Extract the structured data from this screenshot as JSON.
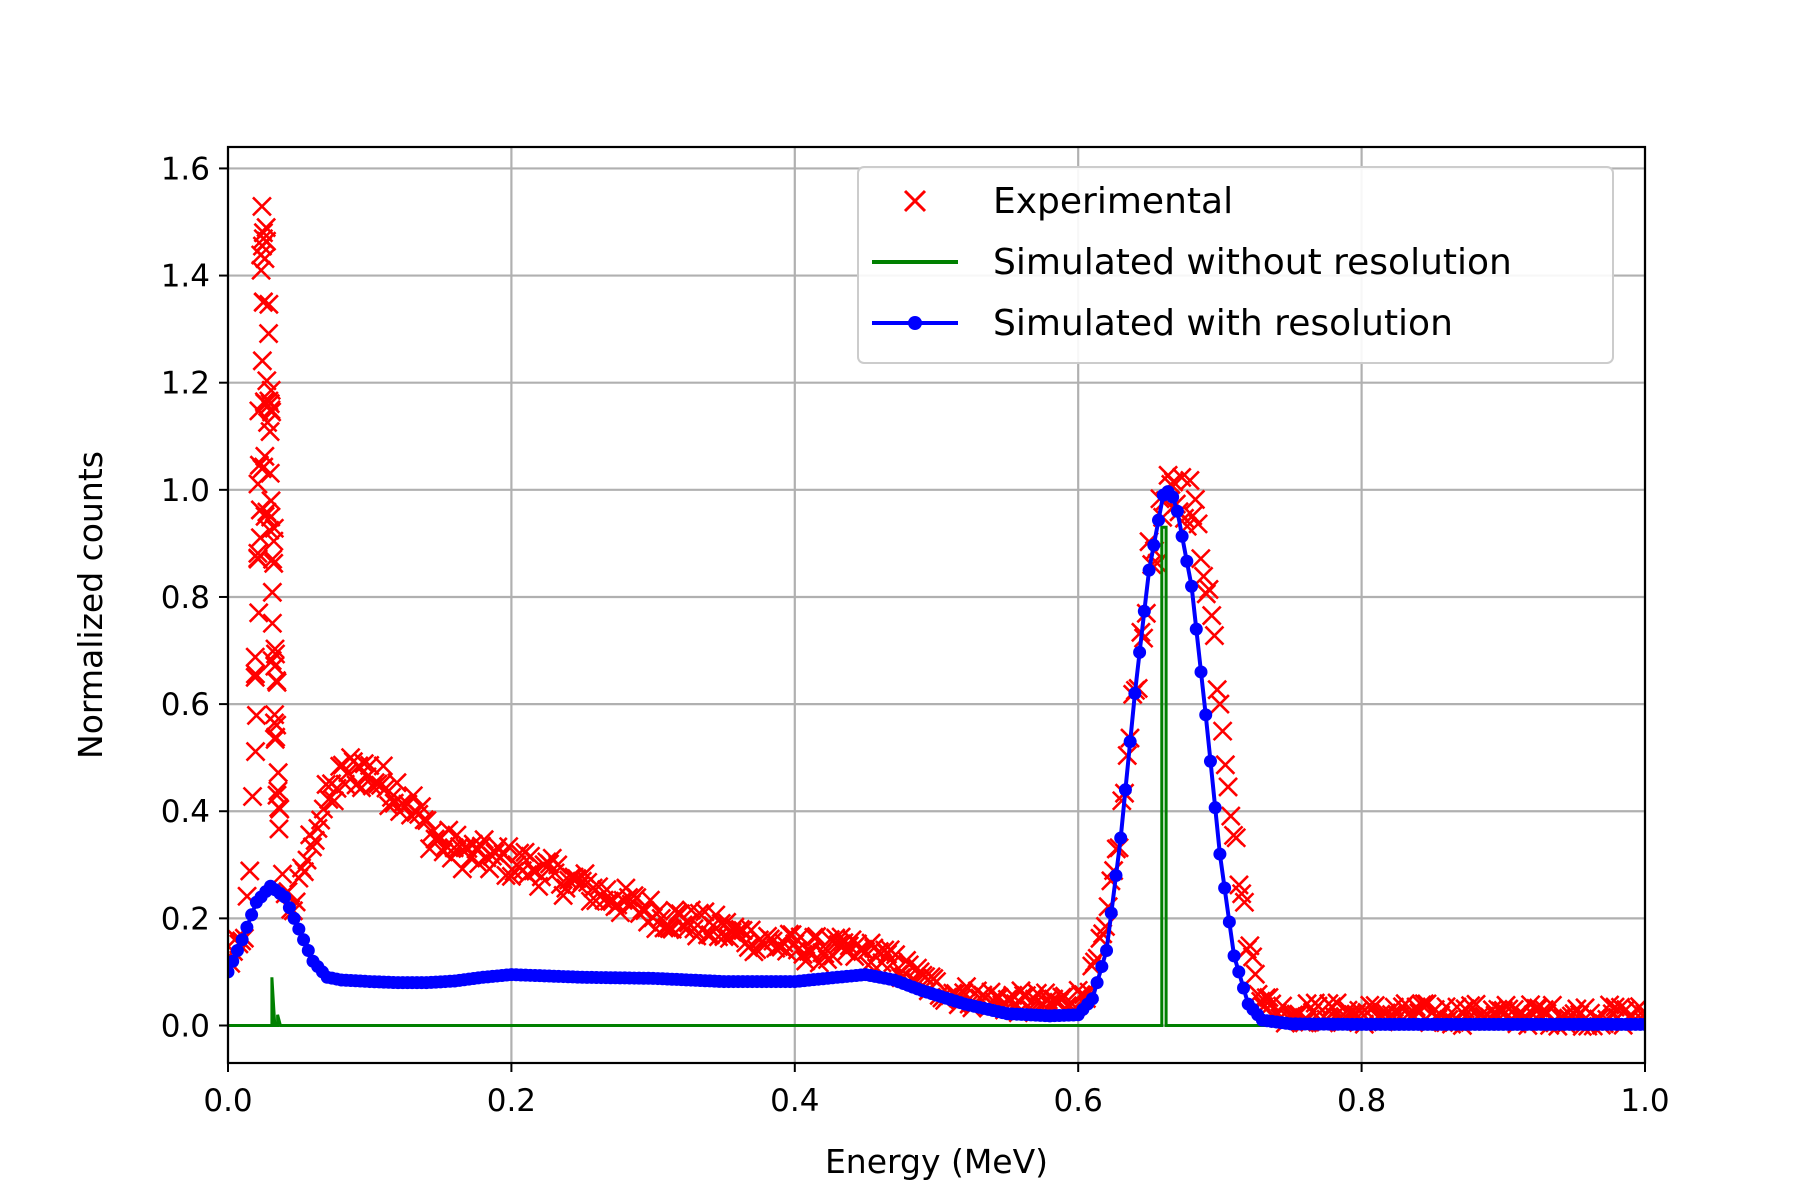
{
  "chart_data": {
    "type": "line",
    "xlabel": "Energy (MeV)",
    "ylabel": "Normalized counts",
    "xlim": [
      0.0,
      1.0
    ],
    "ylim": [
      -0.07,
      1.64
    ],
    "xticks": [
      "0.0",
      "0.2",
      "0.4",
      "0.6",
      "0.8",
      "1.0"
    ],
    "yticks": [
      "0.0",
      "0.2",
      "0.4",
      "0.6",
      "0.8",
      "1.0",
      "1.2",
      "1.4",
      "1.6"
    ],
    "grid": true,
    "legend": {
      "position": "upper-right"
    },
    "series": [
      {
        "name": "Experimental",
        "color": "#ff0000",
        "marker": "x",
        "points": [
          [
            0.0,
            0.12
          ],
          [
            0.01,
            0.15
          ],
          [
            0.015,
            0.25
          ],
          [
            0.018,
            0.45
          ],
          [
            0.02,
            0.8
          ],
          [
            0.022,
            1.2
          ],
          [
            0.024,
            1.56
          ],
          [
            0.026,
            1.5
          ],
          [
            0.028,
            1.45
          ],
          [
            0.03,
            1.3
          ],
          [
            0.032,
            1.0
          ],
          [
            0.034,
            0.7
          ],
          [
            0.036,
            0.4
          ],
          [
            0.04,
            0.25
          ],
          [
            0.045,
            0.22
          ],
          [
            0.05,
            0.25
          ],
          [
            0.06,
            0.36
          ],
          [
            0.07,
            0.42
          ],
          [
            0.08,
            0.46
          ],
          [
            0.09,
            0.48
          ],
          [
            0.1,
            0.47
          ],
          [
            0.11,
            0.45
          ],
          [
            0.12,
            0.44
          ],
          [
            0.13,
            0.41
          ],
          [
            0.14,
            0.37
          ],
          [
            0.15,
            0.34
          ],
          [
            0.17,
            0.32
          ],
          [
            0.19,
            0.31
          ],
          [
            0.21,
            0.3
          ],
          [
            0.23,
            0.28
          ],
          [
            0.25,
            0.26
          ],
          [
            0.27,
            0.24
          ],
          [
            0.3,
            0.21
          ],
          [
            0.33,
            0.19
          ],
          [
            0.36,
            0.17
          ],
          [
            0.39,
            0.15
          ],
          [
            0.42,
            0.14
          ],
          [
            0.44,
            0.14
          ],
          [
            0.46,
            0.13
          ],
          [
            0.48,
            0.1
          ],
          [
            0.5,
            0.07
          ],
          [
            0.52,
            0.055
          ],
          [
            0.55,
            0.045
          ],
          [
            0.58,
            0.04
          ],
          [
            0.6,
            0.05
          ],
          [
            0.61,
            0.09
          ],
          [
            0.62,
            0.18
          ],
          [
            0.63,
            0.38
          ],
          [
            0.64,
            0.62
          ],
          [
            0.65,
            0.85
          ],
          [
            0.66,
            0.96
          ],
          [
            0.67,
            0.99
          ],
          [
            0.675,
            1.0
          ],
          [
            0.68,
            0.97
          ],
          [
            0.69,
            0.86
          ],
          [
            0.7,
            0.62
          ],
          [
            0.71,
            0.36
          ],
          [
            0.72,
            0.15
          ],
          [
            0.73,
            0.05
          ],
          [
            0.74,
            0.025
          ],
          [
            0.8,
            0.022
          ],
          [
            0.9,
            0.02
          ],
          [
            1.0,
            0.018
          ]
        ]
      },
      {
        "name": "Simulated without resolution",
        "color": "#008000",
        "marker": "none",
        "points": [
          [
            0.0,
            0.0
          ],
          [
            0.031,
            0.0
          ],
          [
            0.031,
            0.09
          ],
          [
            0.033,
            0.0
          ],
          [
            0.035,
            0.0
          ],
          [
            0.035,
            0.02
          ],
          [
            0.037,
            0.0
          ],
          [
            0.659,
            0.0
          ],
          [
            0.659,
            0.93
          ],
          [
            0.662,
            0.93
          ],
          [
            0.662,
            0.0
          ],
          [
            1.0,
            0.0
          ]
        ]
      },
      {
        "name": "Simulated with resolution",
        "color": "#0000ff",
        "marker": "dot",
        "points": [
          [
            0.0,
            0.1
          ],
          [
            0.01,
            0.16
          ],
          [
            0.02,
            0.23
          ],
          [
            0.03,
            0.26
          ],
          [
            0.04,
            0.24
          ],
          [
            0.05,
            0.18
          ],
          [
            0.06,
            0.12
          ],
          [
            0.07,
            0.09
          ],
          [
            0.08,
            0.085
          ],
          [
            0.1,
            0.082
          ],
          [
            0.12,
            0.08
          ],
          [
            0.14,
            0.08
          ],
          [
            0.16,
            0.083
          ],
          [
            0.18,
            0.09
          ],
          [
            0.2,
            0.095
          ],
          [
            0.22,
            0.093
          ],
          [
            0.25,
            0.09
          ],
          [
            0.3,
            0.088
          ],
          [
            0.35,
            0.082
          ],
          [
            0.4,
            0.082
          ],
          [
            0.43,
            0.09
          ],
          [
            0.45,
            0.095
          ],
          [
            0.47,
            0.085
          ],
          [
            0.49,
            0.065
          ],
          [
            0.52,
            0.04
          ],
          [
            0.55,
            0.022
          ],
          [
            0.58,
            0.018
          ],
          [
            0.6,
            0.02
          ],
          [
            0.61,
            0.05
          ],
          [
            0.62,
            0.14
          ],
          [
            0.63,
            0.35
          ],
          [
            0.64,
            0.62
          ],
          [
            0.65,
            0.85
          ],
          [
            0.66,
            0.99
          ],
          [
            0.665,
            1.0
          ],
          [
            0.67,
            0.96
          ],
          [
            0.68,
            0.82
          ],
          [
            0.69,
            0.58
          ],
          [
            0.7,
            0.32
          ],
          [
            0.71,
            0.13
          ],
          [
            0.72,
            0.04
          ],
          [
            0.73,
            0.01
          ],
          [
            0.75,
            0.003
          ],
          [
            0.8,
            0.002
          ],
          [
            1.0,
            0.002
          ]
        ]
      }
    ]
  }
}
